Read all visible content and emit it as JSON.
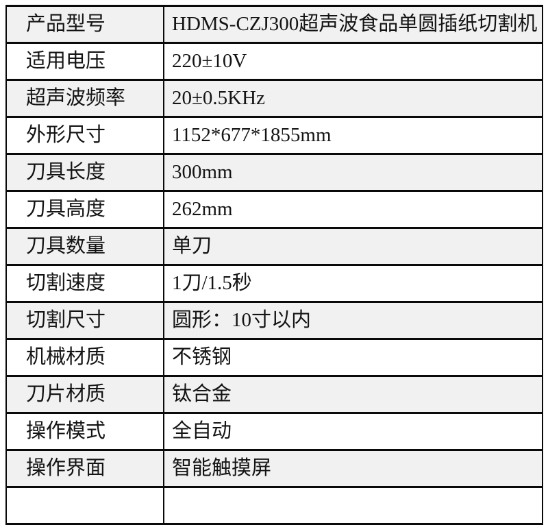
{
  "table": {
    "rows": [
      {
        "label": "产品型号",
        "value": "HDMS-CZJ300超声波食品单圆插纸切割机"
      },
      {
        "label": "适用电压",
        "value": "220±10V"
      },
      {
        "label": "超声波频率",
        "value": "20±0.5KHz"
      },
      {
        "label": "外形尺寸",
        "value": "1152*677*1855mm"
      },
      {
        "label": "刀具长度",
        "value": "300mm"
      },
      {
        "label": "刀具高度",
        "value": "262mm"
      },
      {
        "label": "刀具数量",
        "value": "单刀"
      },
      {
        "label": "切割速度",
        "value": "1刀/1.5秒"
      },
      {
        "label": "切割尺寸",
        "value": "圆形：10寸以内"
      },
      {
        "label": "机械材质",
        "value": "不锈钢"
      },
      {
        "label": "刀片材质",
        "value": "钛合金"
      },
      {
        "label": "操作模式",
        "value": "全自动"
      },
      {
        "label": "操作界面",
        "value": "智能触摸屏"
      }
    ],
    "colors": {
      "border": "#0a0a0a",
      "row_alt_bg": "#f2f1f1",
      "row_bg": "#ffffff",
      "text": "#141414"
    }
  }
}
